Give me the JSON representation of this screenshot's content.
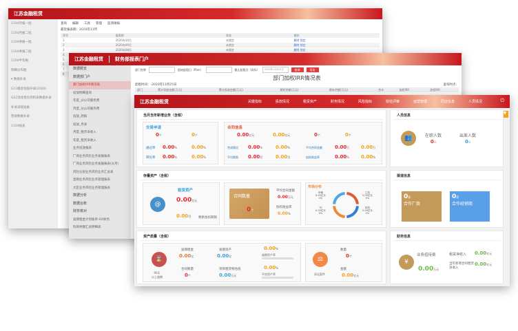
{
  "back": {
    "logo": "江苏金融租赁",
    "sidebar": [
      "1104月报一批",
      "1104月报二批",
      "1104季报一批",
      "1104季报二批",
      "1104半年报",
      "明细分布图",
      "▾ 数据补录",
      "G13最新估值补录(2020)",
      "G22流动性比例附表数据补录",
      "补录减值准备",
      "营收数据补录",
      "1104报表"
    ],
    "toolbar": [
      "查询",
      "编辑",
      "工具",
      "管理",
      "监测填报"
    ],
    "period": "最近报表期：2020年11月",
    "table": {
      "headers": [
        "序号",
        "报表期",
        "状态",
        "操作"
      ],
      "rows": [
        [
          "1",
          "2020年10月",
          "未锁定",
          "删除 锁定"
        ],
        [
          "2",
          "2020年09月",
          "未锁定",
          "删除 锁定"
        ],
        [
          "3",
          "2020年08月",
          "未锁定",
          "删除 锁定"
        ],
        [
          "4",
          "",
          "",
          ""
        ],
        [
          "5",
          "",
          "",
          ""
        ],
        [
          "6",
          "",
          "",
          ""
        ],
        [
          "7",
          "",
          "",
          ""
        ],
        [
          "8",
          "",
          "",
          ""
        ]
      ]
    }
  },
  "middle": {
    "logo": "江苏金融租赁",
    "portal": "财务部报表门户",
    "sidebar": [
      {
        "t": "数据概览",
        "c": "h"
      },
      {
        "t": "数据部门户",
        "c": "h"
      },
      {
        "t": "部门加权IRR情况表",
        "c": "sel"
      },
      {
        "t": "投放明细查询"
      },
      {
        "t": "年度_分公司服务费"
      },
      {
        "t": "月度_分公司服务费"
      },
      {
        "t": "投放_周报"
      },
      {
        "t": "投放_月表"
      },
      {
        "t": "月度_租赁净收入"
      },
      {
        "t": "年度_租赁净收入"
      },
      {
        "t": "业务投放报表"
      },
      {
        "t": "厂商业务风险业务发展报表"
      },
      {
        "t": "厂商业务风险业务发展报表(分月)"
      },
      {
        "t": "风险分层业务风险业务汇总表"
      },
      {
        "t": "直销业务风险业务管理报表"
      },
      {
        "t": "大区业务风险业务管理报表"
      },
      {
        "t": "数据分析",
        "c": "h"
      },
      {
        "t": "数据台账",
        "c": "h"
      },
      {
        "t": "财务核对",
        "c": "h"
      },
      {
        "t": "逾期租金计划账单-OA财务"
      },
      {
        "t": "科目余额汇总明细表"
      }
    ],
    "filters": {
      "dept": "部门名称",
      "plan": "起始起租日（Plan）",
      "actual": "截止起租日（实际）",
      "date": "2020年11月25日",
      "query": "查询",
      "export": "导出"
    },
    "title": "部门加权IRR情况表",
    "subtitle": "起租时间：-2020年11月25日",
    "query_time": "查询时点：",
    "headers": [
      "部门",
      "累计投放金额(万元)",
      "累计投放金额(万元)",
      "期初余额(万元)",
      "期末余额(万元)",
      "合计",
      "加权IRR",
      "加权IRR"
    ]
  },
  "front": {
    "logo": "江苏金融租赁",
    "nav": [
      "关键指标",
      "投放情况",
      "租赁资产",
      "财务情况",
      "风险指标",
      "授信评审",
      "运营管理",
      "同业信息",
      "人员情况"
    ],
    "new_biz": {
      "title": "当月当年新增业务（含税）",
      "trade": {
        "title": "交易申请",
        "v1": "0",
        "v2": "0",
        "u": "个",
        "r1l": "通过率",
        "r2l": "转化率",
        "p": "0.00",
        "pu": "%"
      },
      "contract": {
        "title": "合同信息",
        "a1": "0.00",
        "a2": "0.00",
        "au": "亿元",
        "c1": "0",
        "c2": "0",
        "cu": "个",
        "rows": [
          [
            "完成情况",
            "0.00",
            "%",
            "0.00",
            "%"
          ],
          [
            "平均期限",
            "0.00",
            "月",
            "0.00",
            "月"
          ],
          [
            "平均合同金额",
            "0.00",
            "万",
            "0.00",
            "万"
          ],
          [
            "加权收益率",
            "0.00",
            "%",
            "0.00",
            "%"
          ]
        ]
      }
    },
    "stock": {
      "title": "存量资产（含税）",
      "lease_title": "租赁资产",
      "lease_val": "0.00",
      "lease_unit": "亿元",
      "term_val": "0.00",
      "term_unit": "月",
      "term_label": "剩余加权期限",
      "contract_label": "合同数量",
      "contract_val": "0",
      "contract_unit": "个",
      "avg_label": "平均合同金额",
      "avg_val": "0.00",
      "avg_unit": "万元",
      "rate_label": "加权收益率",
      "rate_val": "0.00",
      "rate_unit": "%",
      "market_title": "市场分布",
      "market": [
        {
          "name": "车辆",
          "val": "0.00亿元",
          "pct": "0%",
          "color": "#e05a3a"
        },
        {
          "name": "工机",
          "val": "0.00亿元",
          "pct": "0%",
          "color": "#2f7fd8"
        },
        {
          "name": "农机",
          "val": "0.00亿元",
          "pct": "0%",
          "color": "#f08a3a"
        },
        {
          "name": "TS",
          "val": "0.00亿元",
          "pct": "0%",
          "color": "#4aa8e8"
        }
      ]
    },
    "quality": {
      "title": "资产质量（含税）",
      "overdue_label": "90天\n以上逾期",
      "rent_label": "逾期租金",
      "rent_val": "0.00",
      "rent_unit": "亿",
      "asset_label": "逾期资产",
      "asset_val": "0.00",
      "asset_unit": "亿",
      "count_label": "合同数量",
      "count_val": "0",
      "count_unit": "个",
      "recover_label": "项目租赁物估值",
      "recover_val": "0.00",
      "recover_unit": "万元",
      "overdue_rate": "0.00",
      "overdue_rate_label": "逾期资产率",
      "bad_rate": "0.00",
      "bad_rate_label": "不良资产率",
      "pu": "%",
      "lawsuit_label": "诉讼案件",
      "qty_label": "数量",
      "qty_val": "0",
      "qty_unit": "个",
      "amt_label": "金额",
      "amt_val": "0.00",
      "amt_unit": "亿元"
    },
    "staff": {
      "title": "人员信息",
      "on_label": "在职人数",
      "on_val": "0",
      "trip_label": "出差人数",
      "trip_val": "0",
      "u": "人"
    },
    "channel": {
      "title": "渠道信息",
      "vendor_val": "0",
      "vendor_label": "合作厂商",
      "dealer_val": "0",
      "dealer_label": "合作经销商",
      "u": "家"
    },
    "finance": {
      "title": "财务信息",
      "hosp_label": "业务招待费",
      "hosp_val": "0.00",
      "hosp_unit": "万元",
      "net_label": "租赁净收入",
      "net_val": "0.00",
      "new_label": "当年新增合同租赁净收入",
      "new_val": "0.00",
      "u": "亿元"
    },
    "colors": {
      "brand": "#c8161e",
      "red": "#e8262d",
      "orange": "#f5a21b",
      "blue": "#3aa0e0",
      "green": "#6cba45",
      "gold": "#c49a5a"
    }
  }
}
